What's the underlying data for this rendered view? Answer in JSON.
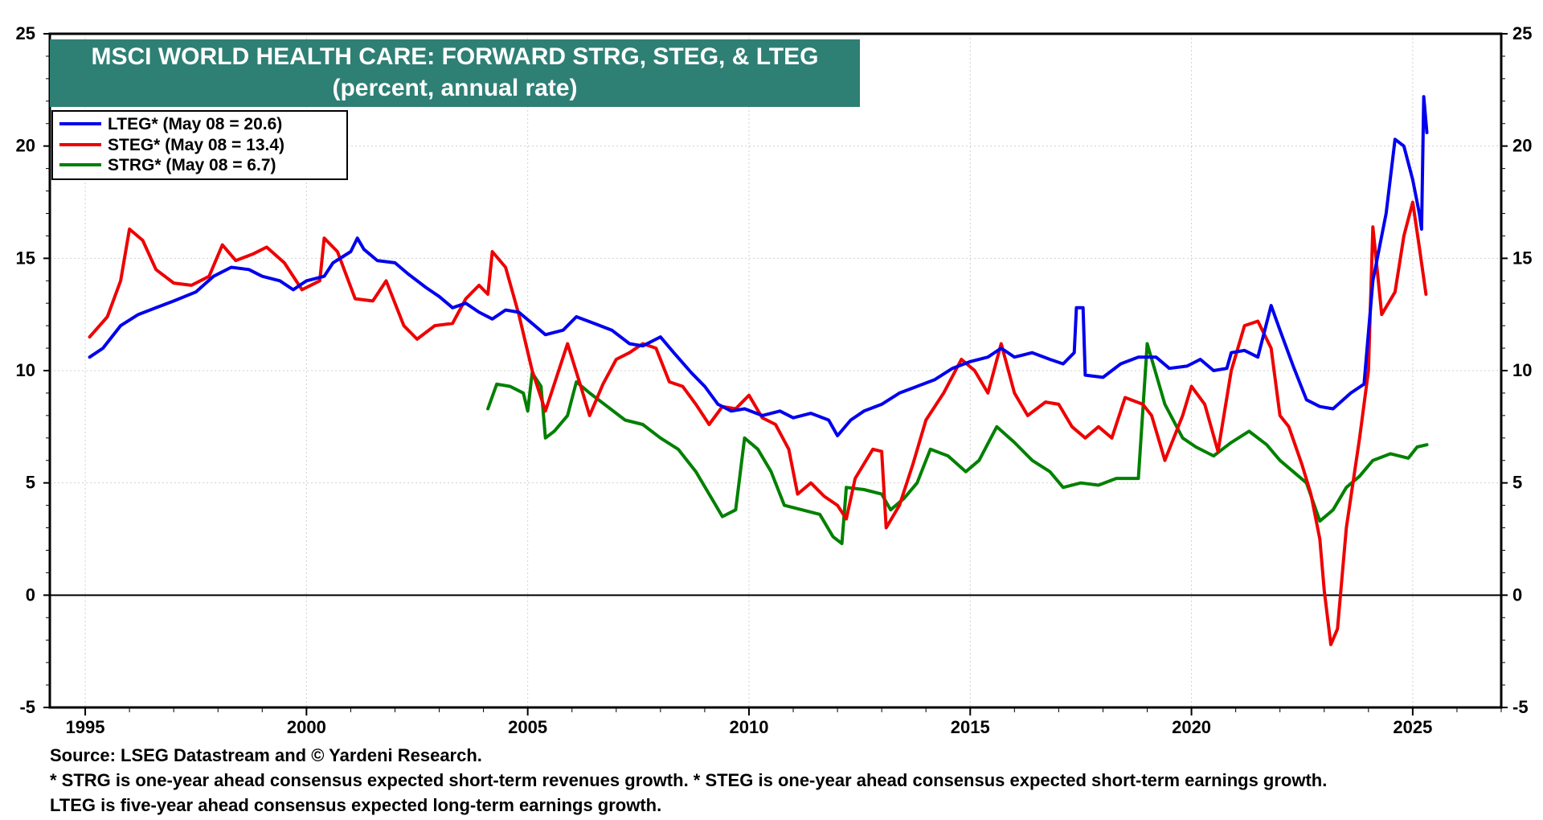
{
  "chart_data": {
    "type": "line",
    "title": "MSCI WORLD HEALTH CARE: FORWARD STRG, STEG, & LTEG",
    "subtitle": "(percent, annual rate)",
    "xlim": [
      1994.2,
      2027
    ],
    "ylim": [
      -5,
      25
    ],
    "y_ticks": [
      -5,
      0,
      5,
      10,
      15,
      20,
      25
    ],
    "x_ticks": [
      1995,
      2000,
      2005,
      2010,
      2015,
      2020,
      2025
    ],
    "zero_line": 0,
    "legend_position": "top-left",
    "series": [
      {
        "name": "LTEG* (May 08 = 20.6)",
        "color": "#0000ee",
        "points": [
          [
            1995.1,
            10.6
          ],
          [
            1995.4,
            11.0
          ],
          [
            1995.8,
            12.0
          ],
          [
            1996.2,
            12.5
          ],
          [
            1996.6,
            12.8
          ],
          [
            1997.0,
            13.1
          ],
          [
            1997.5,
            13.5
          ],
          [
            1997.9,
            14.2
          ],
          [
            1998.3,
            14.6
          ],
          [
            1998.7,
            14.5
          ],
          [
            1999.0,
            14.2
          ],
          [
            1999.4,
            14.0
          ],
          [
            1999.7,
            13.6
          ],
          [
            2000.0,
            14.0
          ],
          [
            2000.4,
            14.2
          ],
          [
            2000.6,
            14.8
          ],
          [
            2001.0,
            15.3
          ],
          [
            2001.15,
            15.9
          ],
          [
            2001.3,
            15.4
          ],
          [
            2001.6,
            14.9
          ],
          [
            2002.0,
            14.8
          ],
          [
            2002.3,
            14.3
          ],
          [
            2002.7,
            13.7
          ],
          [
            2003.0,
            13.3
          ],
          [
            2003.3,
            12.8
          ],
          [
            2003.6,
            13.0
          ],
          [
            2003.9,
            12.6
          ],
          [
            2004.2,
            12.3
          ],
          [
            2004.5,
            12.7
          ],
          [
            2004.8,
            12.6
          ],
          [
            2005.1,
            12.1
          ],
          [
            2005.4,
            11.6
          ],
          [
            2005.8,
            11.8
          ],
          [
            2006.1,
            12.4
          ],
          [
            2006.5,
            12.1
          ],
          [
            2006.9,
            11.8
          ],
          [
            2007.3,
            11.2
          ],
          [
            2007.6,
            11.1
          ],
          [
            2008.0,
            11.5
          ],
          [
            2008.3,
            10.8
          ],
          [
            2008.7,
            9.9
          ],
          [
            2009.0,
            9.3
          ],
          [
            2009.3,
            8.5
          ],
          [
            2009.6,
            8.2
          ],
          [
            2009.9,
            8.3
          ],
          [
            2010.3,
            8.0
          ],
          [
            2010.7,
            8.2
          ],
          [
            2011.0,
            7.9
          ],
          [
            2011.4,
            8.1
          ],
          [
            2011.8,
            7.8
          ],
          [
            2012.0,
            7.1
          ],
          [
            2012.3,
            7.8
          ],
          [
            2012.6,
            8.2
          ],
          [
            2013.0,
            8.5
          ],
          [
            2013.4,
            9.0
          ],
          [
            2013.8,
            9.3
          ],
          [
            2014.2,
            9.6
          ],
          [
            2014.6,
            10.1
          ],
          [
            2015.0,
            10.4
          ],
          [
            2015.4,
            10.6
          ],
          [
            2015.7,
            11.0
          ],
          [
            2016.0,
            10.6
          ],
          [
            2016.4,
            10.8
          ],
          [
            2016.8,
            10.5
          ],
          [
            2017.1,
            10.3
          ],
          [
            2017.35,
            10.8
          ],
          [
            2017.4,
            12.8
          ],
          [
            2017.55,
            12.8
          ],
          [
            2017.6,
            9.8
          ],
          [
            2018.0,
            9.7
          ],
          [
            2018.4,
            10.3
          ],
          [
            2018.8,
            10.6
          ],
          [
            2019.2,
            10.6
          ],
          [
            2019.5,
            10.1
          ],
          [
            2019.9,
            10.2
          ],
          [
            2020.2,
            10.5
          ],
          [
            2020.5,
            10.0
          ],
          [
            2020.8,
            10.1
          ],
          [
            2020.9,
            10.8
          ],
          [
            2021.2,
            10.9
          ],
          [
            2021.5,
            10.6
          ],
          [
            2021.8,
            12.9
          ],
          [
            2022.0,
            11.8
          ],
          [
            2022.3,
            10.2
          ],
          [
            2022.6,
            8.7
          ],
          [
            2022.9,
            8.4
          ],
          [
            2023.2,
            8.3
          ],
          [
            2023.6,
            9.0
          ],
          [
            2023.9,
            9.4
          ],
          [
            2024.1,
            14.0
          ],
          [
            2024.4,
            17.0
          ],
          [
            2024.6,
            20.3
          ],
          [
            2024.8,
            20.0
          ],
          [
            2025.0,
            18.5
          ],
          [
            2025.15,
            17.0
          ],
          [
            2025.2,
            16.3
          ],
          [
            2025.25,
            22.2
          ],
          [
            2025.32,
            20.6
          ]
        ]
      },
      {
        "name": "STEG* (May 08 = 13.4)",
        "color": "#ee0000",
        "points": [
          [
            1995.1,
            11.5
          ],
          [
            1995.5,
            12.4
          ],
          [
            1995.8,
            14.0
          ],
          [
            1996.0,
            16.3
          ],
          [
            1996.3,
            15.8
          ],
          [
            1996.6,
            14.5
          ],
          [
            1997.0,
            13.9
          ],
          [
            1997.4,
            13.8
          ],
          [
            1997.8,
            14.2
          ],
          [
            1998.1,
            15.6
          ],
          [
            1998.4,
            14.9
          ],
          [
            1998.8,
            15.2
          ],
          [
            1999.1,
            15.5
          ],
          [
            1999.5,
            14.8
          ],
          [
            1999.9,
            13.6
          ],
          [
            2000.3,
            14.0
          ],
          [
            2000.4,
            15.9
          ],
          [
            2000.7,
            15.3
          ],
          [
            2001.1,
            13.2
          ],
          [
            2001.5,
            13.1
          ],
          [
            2001.8,
            14.0
          ],
          [
            2002.2,
            12.0
          ],
          [
            2002.5,
            11.4
          ],
          [
            2002.9,
            12.0
          ],
          [
            2003.3,
            12.1
          ],
          [
            2003.6,
            13.2
          ],
          [
            2003.9,
            13.8
          ],
          [
            2004.1,
            13.4
          ],
          [
            2004.2,
            15.3
          ],
          [
            2004.5,
            14.6
          ],
          [
            2004.8,
            12.5
          ],
          [
            2005.1,
            10.0
          ],
          [
            2005.4,
            8.2
          ],
          [
            2005.7,
            10.0
          ],
          [
            2005.9,
            11.2
          ],
          [
            2006.2,
            9.3
          ],
          [
            2006.4,
            8.0
          ],
          [
            2006.7,
            9.4
          ],
          [
            2007.0,
            10.5
          ],
          [
            2007.3,
            10.8
          ],
          [
            2007.6,
            11.2
          ],
          [
            2007.9,
            11.0
          ],
          [
            2008.2,
            9.5
          ],
          [
            2008.5,
            9.3
          ],
          [
            2008.8,
            8.5
          ],
          [
            2009.1,
            7.6
          ],
          [
            2009.4,
            8.4
          ],
          [
            2009.7,
            8.3
          ],
          [
            2010.0,
            8.9
          ],
          [
            2010.3,
            7.9
          ],
          [
            2010.6,
            7.6
          ],
          [
            2010.9,
            6.5
          ],
          [
            2011.1,
            4.5
          ],
          [
            2011.4,
            5.0
          ],
          [
            2011.7,
            4.4
          ],
          [
            2012.0,
            4.0
          ],
          [
            2012.2,
            3.4
          ],
          [
            2012.4,
            5.2
          ],
          [
            2012.8,
            6.5
          ],
          [
            2013.0,
            6.4
          ],
          [
            2013.1,
            3.0
          ],
          [
            2013.4,
            4.0
          ],
          [
            2013.7,
            5.8
          ],
          [
            2014.0,
            7.8
          ],
          [
            2014.4,
            9.0
          ],
          [
            2014.8,
            10.5
          ],
          [
            2015.1,
            10.0
          ],
          [
            2015.4,
            9.0
          ],
          [
            2015.7,
            11.2
          ],
          [
            2016.0,
            9.0
          ],
          [
            2016.3,
            8.0
          ],
          [
            2016.7,
            8.6
          ],
          [
            2017.0,
            8.5
          ],
          [
            2017.3,
            7.5
          ],
          [
            2017.6,
            7.0
          ],
          [
            2017.9,
            7.5
          ],
          [
            2018.2,
            7.0
          ],
          [
            2018.5,
            8.8
          ],
          [
            2018.9,
            8.5
          ],
          [
            2019.1,
            8.0
          ],
          [
            2019.4,
            6.0
          ],
          [
            2019.8,
            8.0
          ],
          [
            2020.0,
            9.3
          ],
          [
            2020.3,
            8.5
          ],
          [
            2020.6,
            6.4
          ],
          [
            2020.9,
            10.0
          ],
          [
            2021.2,
            12.0
          ],
          [
            2021.5,
            12.2
          ],
          [
            2021.8,
            11.0
          ],
          [
            2022.0,
            8.0
          ],
          [
            2022.2,
            7.5
          ],
          [
            2022.5,
            5.8
          ],
          [
            2022.7,
            4.5
          ],
          [
            2022.9,
            2.5
          ],
          [
            2023.0,
            0.2
          ],
          [
            2023.15,
            -2.2
          ],
          [
            2023.3,
            -1.5
          ],
          [
            2023.5,
            3.0
          ],
          [
            2023.8,
            7.0
          ],
          [
            2024.0,
            10.0
          ],
          [
            2024.1,
            16.4
          ],
          [
            2024.3,
            12.5
          ],
          [
            2024.6,
            13.5
          ],
          [
            2024.8,
            16.0
          ],
          [
            2025.0,
            17.5
          ],
          [
            2025.15,
            15.5
          ],
          [
            2025.3,
            13.4
          ]
        ]
      },
      {
        "name": "STRG* (May 08 = 6.7)",
        "color": "#008000",
        "points": [
          [
            2004.1,
            8.3
          ],
          [
            2004.3,
            9.4
          ],
          [
            2004.6,
            9.3
          ],
          [
            2004.9,
            9.0
          ],
          [
            2005.0,
            8.2
          ],
          [
            2005.1,
            9.9
          ],
          [
            2005.3,
            9.3
          ],
          [
            2005.4,
            7.0
          ],
          [
            2005.6,
            7.3
          ],
          [
            2005.9,
            8.0
          ],
          [
            2006.1,
            9.5
          ],
          [
            2006.4,
            9.0
          ],
          [
            2006.8,
            8.4
          ],
          [
            2007.2,
            7.8
          ],
          [
            2007.6,
            7.6
          ],
          [
            2008.0,
            7.0
          ],
          [
            2008.4,
            6.5
          ],
          [
            2008.8,
            5.5
          ],
          [
            2009.1,
            4.5
          ],
          [
            2009.4,
            3.5
          ],
          [
            2009.7,
            3.8
          ],
          [
            2009.9,
            7.0
          ],
          [
            2010.2,
            6.5
          ],
          [
            2010.5,
            5.5
          ],
          [
            2010.8,
            4.0
          ],
          [
            2011.2,
            3.8
          ],
          [
            2011.6,
            3.6
          ],
          [
            2011.9,
            2.6
          ],
          [
            2012.1,
            2.3
          ],
          [
            2012.2,
            4.8
          ],
          [
            2012.6,
            4.7
          ],
          [
            2013.0,
            4.5
          ],
          [
            2013.2,
            3.8
          ],
          [
            2013.5,
            4.3
          ],
          [
            2013.8,
            5.0
          ],
          [
            2014.1,
            6.5
          ],
          [
            2014.5,
            6.2
          ],
          [
            2014.9,
            5.5
          ],
          [
            2015.2,
            6.0
          ],
          [
            2015.6,
            7.5
          ],
          [
            2016.0,
            6.8
          ],
          [
            2016.4,
            6.0
          ],
          [
            2016.8,
            5.5
          ],
          [
            2017.1,
            4.8
          ],
          [
            2017.5,
            5.0
          ],
          [
            2017.9,
            4.9
          ],
          [
            2018.3,
            5.2
          ],
          [
            2018.8,
            5.2
          ],
          [
            2019.0,
            11.2
          ],
          [
            2019.4,
            8.5
          ],
          [
            2019.8,
            7.0
          ],
          [
            2020.1,
            6.6
          ],
          [
            2020.5,
            6.2
          ],
          [
            2020.9,
            6.8
          ],
          [
            2021.3,
            7.3
          ],
          [
            2021.7,
            6.7
          ],
          [
            2022.0,
            6.0
          ],
          [
            2022.3,
            5.5
          ],
          [
            2022.6,
            5.0
          ],
          [
            2022.9,
            3.3
          ],
          [
            2023.2,
            3.8
          ],
          [
            2023.5,
            4.8
          ],
          [
            2023.8,
            5.3
          ],
          [
            2024.1,
            6.0
          ],
          [
            2024.5,
            6.3
          ],
          [
            2024.9,
            6.1
          ],
          [
            2025.1,
            6.6
          ],
          [
            2025.32,
            6.7
          ]
        ]
      }
    ]
  },
  "footer": {
    "source": "Source: LSEG Datastream and © Yardeni Research.",
    "note1": "* STRG is one-year ahead consensus expected short-term revenues growth. * STEG is one-year ahead consensus expected short-term earnings growth.",
    "note2": "LTEG is five-year ahead consensus expected long-term earnings growth."
  },
  "colors": {
    "title_bg": "#2e7f74",
    "title_text": "#ffffff"
  }
}
